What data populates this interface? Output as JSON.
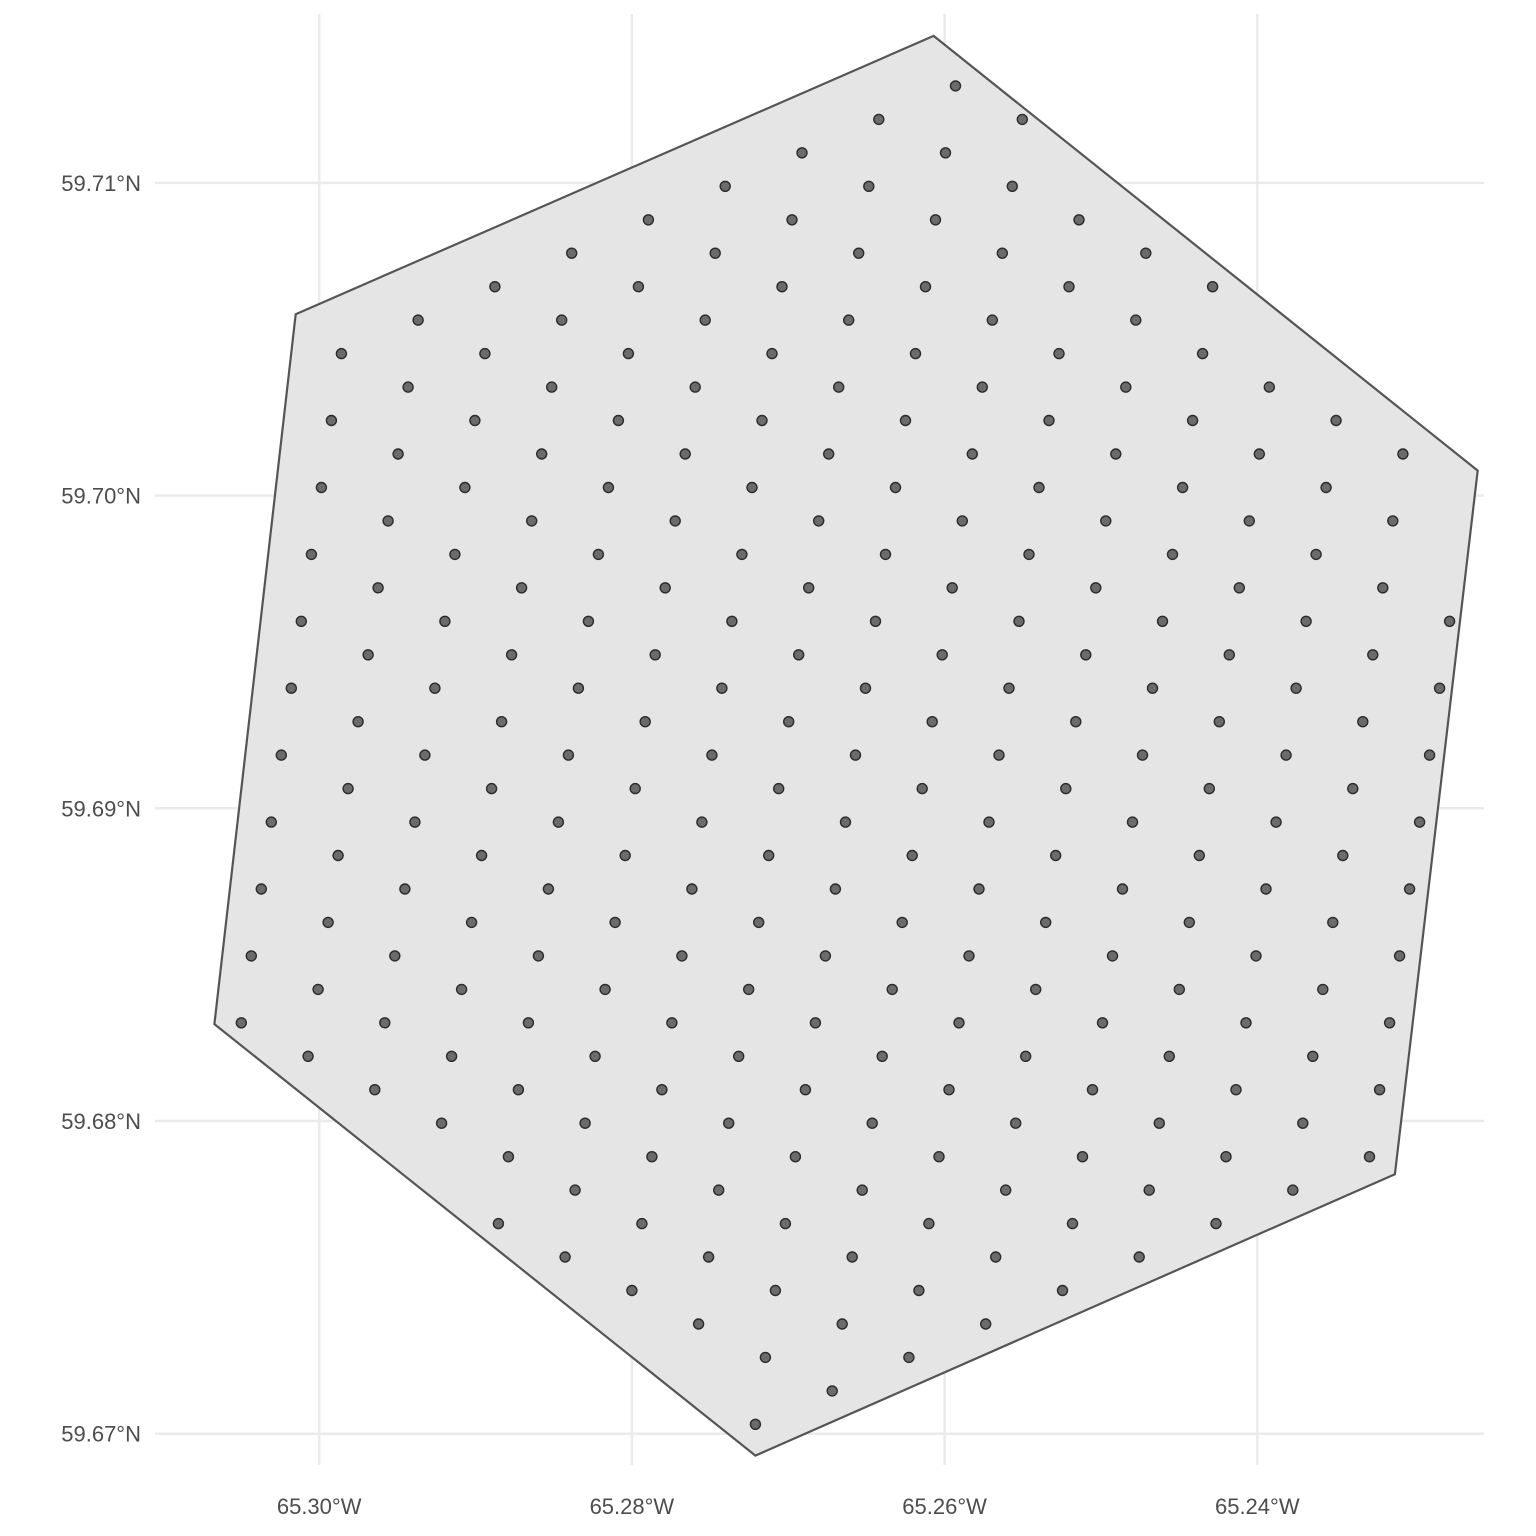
{
  "chart_data": {
    "type": "scatter",
    "title": "",
    "xlabel": "",
    "ylabel": "",
    "grid": true,
    "xlim": [
      -65.3105,
      -65.2255
    ],
    "ylim": [
      59.669,
      59.7154
    ],
    "x_ticks": [
      {
        "value": -65.3,
        "label": "65.30°W"
      },
      {
        "value": -65.28,
        "label": "65.28°W"
      },
      {
        "value": -65.26,
        "label": "65.26°W"
      },
      {
        "value": -65.24,
        "label": "65.24°W"
      }
    ],
    "y_ticks": [
      {
        "value": 59.67,
        "label": "59.67°N"
      },
      {
        "value": 59.68,
        "label": "59.68°N"
      },
      {
        "value": 59.69,
        "label": "59.69°N"
      },
      {
        "value": 59.7,
        "label": "59.70°N"
      },
      {
        "value": 59.71,
        "label": "59.71°N"
      }
    ],
    "polygon": [
      [
        -65.2607,
        59.7147
      ],
      [
        -65.2259,
        59.7008
      ],
      [
        -65.2312,
        59.6783
      ],
      [
        -65.2721,
        59.6693
      ],
      [
        -65.3067,
        59.6831
      ],
      [
        -65.3015,
        59.7058
      ]
    ],
    "grid_origin": [
      -65.2721,
      59.6703
    ],
    "grid_vector_a": [
      0.00491,
      0.00107
    ],
    "grid_vector_b": [
      -0.00427,
      0.00107
    ],
    "fill_color": "#e5e5e5",
    "outline_color": "#555555",
    "point_color": "#6b6b6b",
    "point_outline_color": "#2b2b2b"
  }
}
